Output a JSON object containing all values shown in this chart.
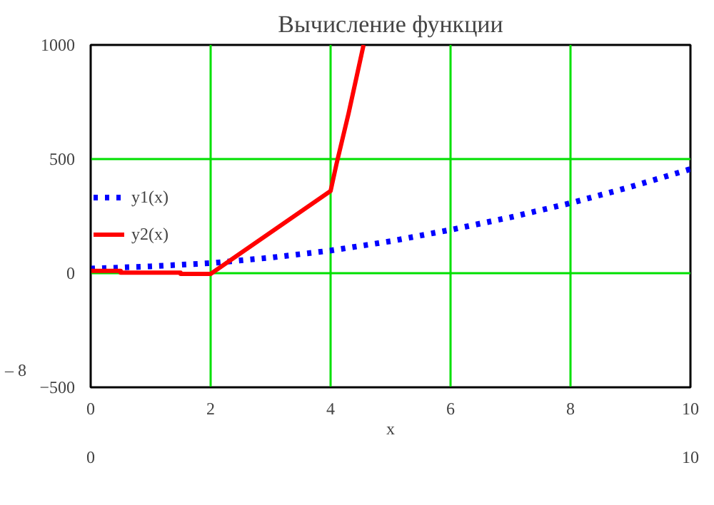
{
  "chart_data": {
    "type": "line",
    "title": "Вычисление функции",
    "xlabel": "x",
    "xlim": [
      0,
      10
    ],
    "xticks": [
      0,
      2,
      4,
      6,
      8,
      10
    ],
    "ylim": [
      -500,
      1000
    ],
    "yticks": [
      -500,
      0,
      500,
      1000
    ],
    "grid": true,
    "legend": "left",
    "annotations": [
      "– 8",
      "0",
      "10"
    ],
    "series": [
      {
        "name": "y1(x)",
        "color": "#0000ff",
        "line_style": "dotted",
        "x": [
          0,
          1,
          2,
          3,
          4,
          5,
          6,
          7,
          8,
          9,
          10
        ],
        "values": [
          20,
          30,
          44,
          68,
          99,
          140,
          190,
          245,
          307,
          378,
          456
        ]
      },
      {
        "name": "y2(x)",
        "color": "#ff0000",
        "line_style": "solid",
        "x": [
          0,
          0.5,
          0.5,
          1.5,
          1.5,
          2,
          4,
          4.1,
          4.3,
          4.55
        ],
        "values": [
          10,
          10,
          2,
          2,
          -3,
          -3,
          360,
          480,
          700,
          1000
        ]
      }
    ]
  }
}
